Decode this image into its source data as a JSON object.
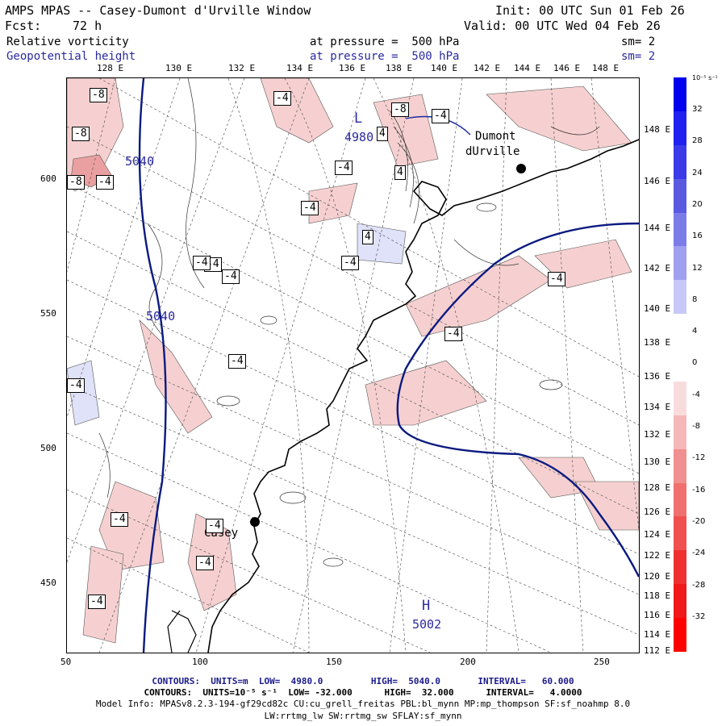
{
  "header": {
    "title": "AMPS MPAS -- Casey-Dumont d'Urville Window",
    "init": "Init: 00 UTC Sun 01 Feb 26",
    "fcst_label": "Fcst:",
    "fcst_value": "72 h",
    "valid": "Valid: 00 UTC Wed 04 Feb 26",
    "field1": "Relative vorticity",
    "field1_level": "at pressure =  500 hPa",
    "field1_sm": "sm= 2",
    "field2": "Geopotential height",
    "field2_level": "at pressure =  500 hPa",
    "field2_sm": "sm= 2"
  },
  "map": {
    "top_lon_labels": [
      "128 E",
      "130 E",
      "132 E",
      "134 E",
      "136 E",
      "138 E",
      "140 E",
      "142 E",
      "144 E",
      "146 E",
      "148 E"
    ],
    "right_lat_labels": [
      "148 E",
      "146 E",
      "144 E",
      "142 E",
      "140 E",
      "138 E",
      "136 E",
      "134 E",
      "132 E",
      "130 E",
      "128 E",
      "126 E",
      "124 E",
      "122 E",
      "120 E",
      "118 E",
      "116 E",
      "114 E",
      "112 E"
    ],
    "x_ticks": [
      "50",
      "100",
      "150",
      "200",
      "250"
    ],
    "y_ticks": [
      "600",
      "550",
      "500",
      "450"
    ],
    "stations": [
      {
        "name": "Casey"
      },
      {
        "name": "Dumont",
        "name2": "dUrville"
      }
    ],
    "height_labels": [
      "5040",
      "5040",
      "4980",
      "5002"
    ],
    "low_label": "L",
    "high_label": "H",
    "vort_boxes": [
      "-8",
      "-8",
      "-8",
      "-4",
      "-4",
      "-8",
      "-4",
      "-4",
      "4",
      "4",
      "4",
      "-4",
      "-4",
      "-4",
      "-4",
      "-4",
      "-4",
      "-4",
      "-4",
      "-4",
      "-4",
      "-4",
      "-4",
      "-4"
    ]
  },
  "colorbar": {
    "unit_label": "10⁻⁵ s⁻¹",
    "ticks": [
      "32",
      "28",
      "24",
      "20",
      "16",
      "12",
      "8",
      "4",
      "0",
      "-4",
      "-8",
      "-12",
      "-16",
      "-20",
      "-24",
      "-28",
      "-32"
    ],
    "colors": [
      "#0000ee",
      "#2020f0",
      "#3a3ae8",
      "#5a5ae0",
      "#7c7ce8",
      "#a0a0f0",
      "#c8c8f8",
      "#ffffff",
      "#ffffff",
      "#f8dcdc",
      "#f4b8b8",
      "#f09090",
      "#f07070",
      "#f05050",
      "#f03030",
      "#f01818",
      "#ff0000"
    ]
  },
  "footer": {
    "line1": "CONTOURS:  UNITS=m  LOW=  4980.0         HIGH=  5040.0       INTERVAL=   60.000",
    "line2": "CONTOURS:  UNITS=10⁻⁵ s⁻¹  LOW= -32.000      HIGH=  32.000      INTERVAL=   4.0000",
    "line3": "Model Info: MPASv8.2.3-194-gf29cd82c CU:cu_grell_freitas PBL:bl_mynn MP:mp_thompson SF:sf_noahmp 8.0",
    "line4": "LW:rrtmg_lw SW:rrtmg_sw SFLAY:sf_mynn"
  }
}
